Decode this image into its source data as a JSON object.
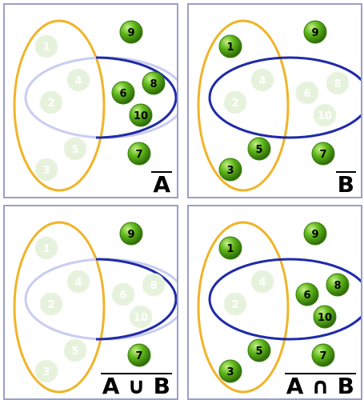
{
  "colors": {
    "set_a_outline": "#f0b429",
    "set_b_outline": "#1f2ba8",
    "set_b_faded_outline": "#c9cdf0",
    "ball_green": "#5fb81a",
    "ball_dark": "#2d6a09",
    "ball_faded": "#e6f2dc",
    "panel_border": "#9aa0c8"
  },
  "panels": [
    {
      "label": "A",
      "a_faded": false,
      "b_faded": true,
      "active": [
        6,
        8,
        9,
        10,
        7
      ],
      "faded": [
        1,
        2,
        3,
        4,
        5
      ]
    },
    {
      "label": "B",
      "a_faded": false,
      "b_faded": false,
      "active": [
        1,
        9,
        3,
        5,
        7
      ],
      "faded": [
        2,
        4,
        6,
        8,
        10
      ]
    },
    {
      "label": "A ∪ B",
      "a_faded": false,
      "b_faded": true,
      "active": [
        9,
        7
      ],
      "faded": [
        1,
        2,
        3,
        4,
        5,
        6,
        8,
        10
      ]
    },
    {
      "label": "A ∩ B",
      "a_faded": false,
      "b_faded": false,
      "active": [
        1,
        2,
        3,
        4,
        5,
        6,
        7,
        8,
        9,
        10
      ],
      "faded": [
        2,
        4
      ]
    }
  ]
}
